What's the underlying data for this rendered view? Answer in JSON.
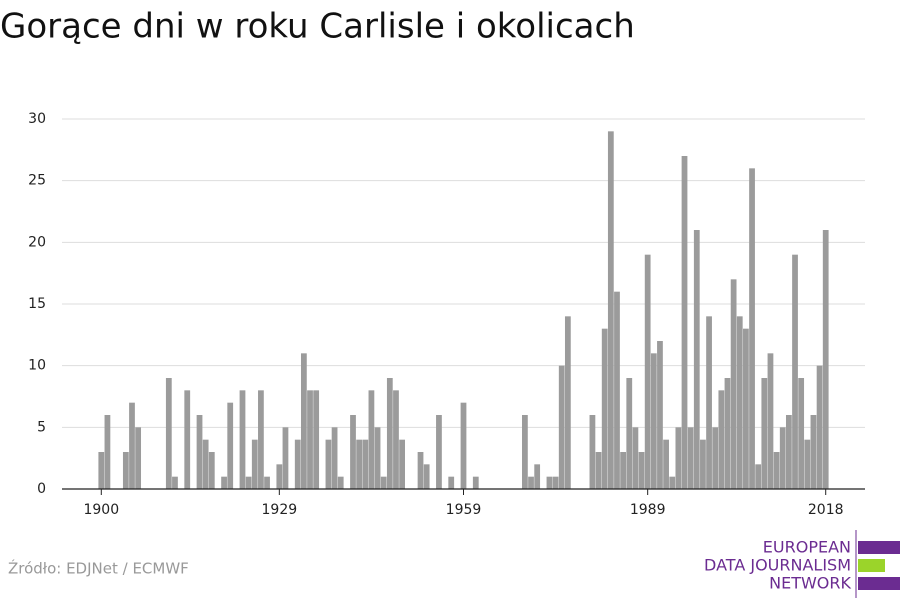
{
  "chart_data": {
    "type": "bar",
    "title": "Gorące dni w roku Carlisle i okolicach",
    "source": "Źródło: EDJNet / ECMWF",
    "logo": [
      "EUROPEAN",
      "DATA JOURNALISM",
      "NETWORK"
    ],
    "color": "#9b9b9b",
    "grid": true,
    "x": [
      1900,
      1901,
      1902,
      1903,
      1904,
      1905,
      1906,
      1907,
      1908,
      1909,
      1910,
      1911,
      1912,
      1913,
      1914,
      1915,
      1916,
      1917,
      1918,
      1919,
      1920,
      1921,
      1922,
      1923,
      1924,
      1925,
      1926,
      1927,
      1928,
      1929,
      1930,
      1931,
      1932,
      1933,
      1934,
      1935,
      1936,
      1937,
      1938,
      1939,
      1940,
      1941,
      1942,
      1943,
      1944,
      1945,
      1946,
      1947,
      1948,
      1949,
      1950,
      1951,
      1952,
      1953,
      1954,
      1955,
      1956,
      1957,
      1958,
      1959,
      1960,
      1961,
      1962,
      1963,
      1964,
      1965,
      1966,
      1967,
      1968,
      1969,
      1970,
      1971,
      1972,
      1973,
      1974,
      1975,
      1976,
      1977,
      1978,
      1979,
      1980,
      1981,
      1982,
      1983,
      1984,
      1985,
      1986,
      1987,
      1988,
      1989,
      1990,
      1991,
      1992,
      1993,
      1994,
      1995,
      1996,
      1997,
      1998,
      1999,
      2000,
      2001,
      2002,
      2003,
      2004,
      2005,
      2006,
      2007,
      2008,
      2009,
      2010,
      2011,
      2012,
      2013,
      2014,
      2015,
      2016,
      2017,
      2018
    ],
    "values": [
      3,
      6,
      0,
      0,
      3,
      7,
      5,
      0,
      0,
      0,
      0,
      9,
      1,
      0,
      8,
      0,
      6,
      4,
      3,
      0,
      1,
      7,
      0,
      8,
      1,
      4,
      8,
      1,
      0,
      2,
      5,
      0,
      4,
      11,
      8,
      8,
      0,
      4,
      5,
      1,
      0,
      6,
      4,
      4,
      8,
      5,
      1,
      9,
      8,
      4,
      0,
      0,
      3,
      2,
      0,
      6,
      0,
      1,
      0,
      7,
      0,
      1,
      0,
      0,
      0,
      0,
      0,
      0,
      0,
      6,
      1,
      2,
      0,
      1,
      1,
      10,
      14,
      0,
      0,
      0,
      6,
      3,
      13,
      29,
      16,
      3,
      9,
      5,
      3,
      19,
      11,
      12,
      4,
      1,
      5,
      27,
      5,
      21,
      4,
      14,
      5,
      8,
      9,
      17,
      14,
      13,
      26,
      2,
      9,
      11,
      3,
      5,
      6,
      19,
      9,
      4,
      6,
      10,
      21
    ],
    "xlim": [
      1893.6,
      2024.4
    ],
    "xticks": [
      1900,
      1929,
      1959,
      1989,
      2018
    ],
    "ylim": [
      0,
      30
    ],
    "yticks": [
      0,
      5,
      10,
      15,
      20,
      25,
      30
    ]
  }
}
